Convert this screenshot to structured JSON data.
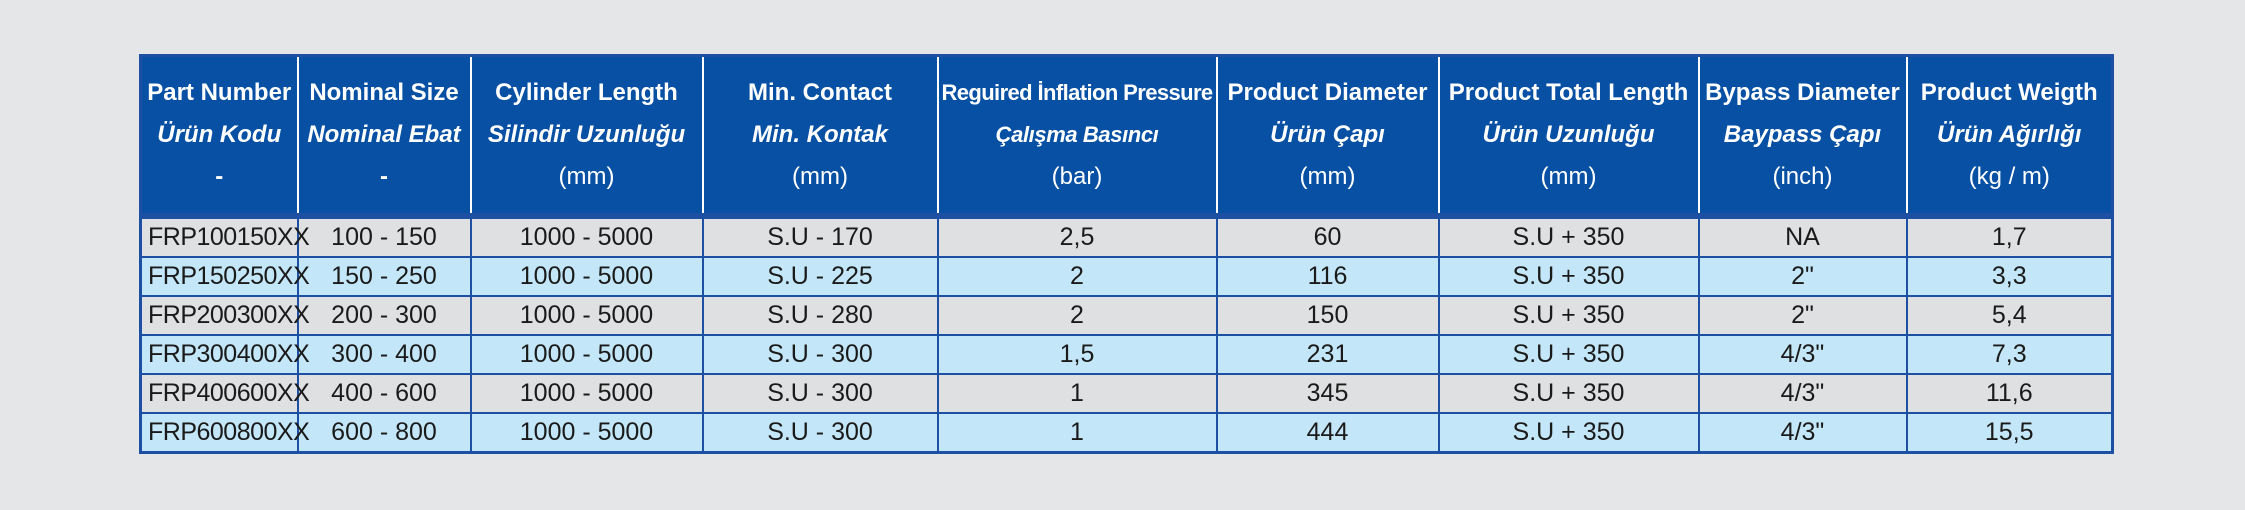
{
  "headers": [
    {
      "en": "Part Number",
      "tr": "Ürün Kodu",
      "unit": "-"
    },
    {
      "en": "Nominal Size",
      "tr": "Nominal Ebat",
      "unit": "-"
    },
    {
      "en": "Cylinder Length",
      "tr": "Silindir Uzunluğu",
      "unit": "(mm)"
    },
    {
      "en": "Min. Contact",
      "tr": "Min. Kontak",
      "unit": "(mm)"
    },
    {
      "en": "Reguired İnflation Pressure",
      "tr": "Çalışma Basıncı",
      "unit": "(bar)"
    },
    {
      "en": "Product Diameter",
      "tr": "Ürün Çapı",
      "unit": "(mm)"
    },
    {
      "en": "Product Total Length",
      "tr": "Ürün Uzunluğu",
      "unit": "(mm)"
    },
    {
      "en": "Bypass Diameter",
      "tr": "Baypass Çapı",
      "unit": "(inch)"
    },
    {
      "en": "Product Weigth",
      "tr": "Ürün Ağırlığı",
      "unit": "(kg / m)"
    }
  ],
  "rows": [
    [
      "FRP100150XX",
      "100 - 150",
      "1000 - 5000",
      "S.U - 170",
      "2,5",
      "60",
      "S.U + 350",
      "NA",
      "1,7"
    ],
    [
      "FRP150250XX",
      "150 - 250",
      "1000 - 5000",
      "S.U - 225",
      "2",
      "116",
      "S.U + 350",
      "2\"",
      "3,3"
    ],
    [
      "FRP200300XX",
      "200 - 300",
      "1000 - 5000",
      "S.U - 280",
      "2",
      "150",
      "S.U + 350",
      "2\"",
      "5,4"
    ],
    [
      "FRP300400XX",
      "300 - 400",
      "1000 - 5000",
      "S.U - 300",
      "1,5",
      "231",
      "S.U + 350",
      "4/3\"",
      "7,3"
    ],
    [
      "FRP400600XX",
      "400 - 600",
      "1000 - 5000",
      "S.U - 300",
      "1",
      "345",
      "S.U + 350",
      "4/3\"",
      "11,6"
    ],
    [
      "FRP600800XX",
      "600 - 800",
      "1000 - 5000",
      "S.U - 300",
      "1",
      "444",
      "S.U + 350",
      "4/3\"",
      "15,5"
    ]
  ],
  "colors": {
    "header_bg": "#0750a3",
    "grid_line": "#1d4fa3",
    "row_gray": "#dfe0e2",
    "row_blue": "#c3e7f8",
    "page_bg": "#e5e6e8"
  }
}
